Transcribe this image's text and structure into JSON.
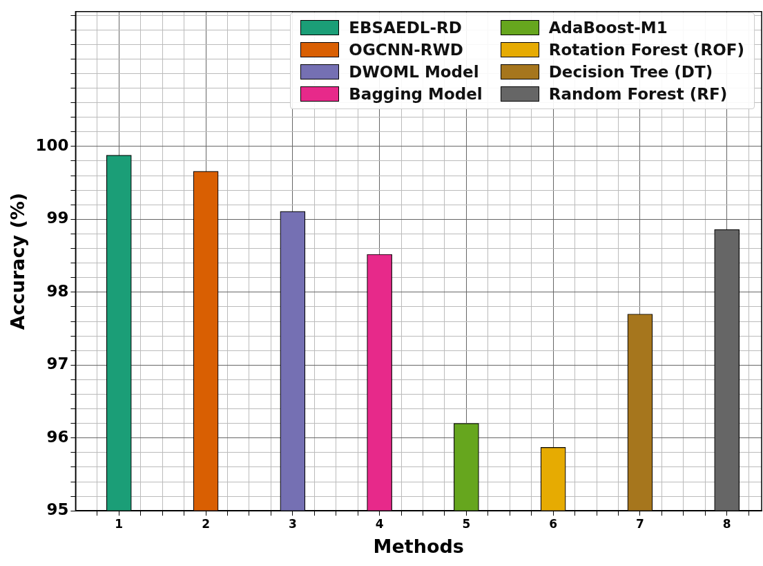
{
  "chart_data": {
    "type": "bar",
    "xlabel": "Methods",
    "ylabel": "Accuracy (%)",
    "x": [
      1,
      2,
      3,
      4,
      5,
      6,
      7,
      8
    ],
    "series": [
      {
        "name": "EBSAEDL-RD",
        "color": "#1b9e77",
        "values": [
          99.88,
          null,
          null,
          null,
          null,
          null,
          null,
          null
        ]
      },
      {
        "name": "OGCNN-RWD",
        "color": "#d95f02",
        "values": [
          null,
          99.66,
          null,
          null,
          null,
          null,
          null,
          null
        ]
      },
      {
        "name": "DWOML Model",
        "color": "#7570b3",
        "values": [
          null,
          null,
          99.11,
          null,
          null,
          null,
          null,
          null
        ]
      },
      {
        "name": "Bagging Model",
        "color": "#e7298a",
        "values": [
          null,
          null,
          null,
          98.52,
          null,
          null,
          null,
          null
        ]
      },
      {
        "name": "AdaBoost-M1",
        "color": "#66a61e",
        "values": [
          null,
          null,
          null,
          null,
          96.2,
          null,
          null,
          null
        ]
      },
      {
        "name": "Rotation Forest (ROF)",
        "color": "#e6ab02",
        "values": [
          null,
          null,
          null,
          null,
          null,
          95.87,
          null,
          null
        ]
      },
      {
        "name": "Decision Tree (DT)",
        "color": "#a6761d",
        "values": [
          null,
          null,
          null,
          null,
          null,
          null,
          97.7,
          null
        ]
      },
      {
        "name": "Random Forest (RF)",
        "color": "#666666",
        "values": [
          null,
          null,
          null,
          null,
          null,
          null,
          null,
          98.86
        ]
      }
    ],
    "xlim": [
      0.5,
      8.4
    ],
    "xticks": [
      {
        "value": 0.75,
        "label": null
      },
      1,
      {
        "value": 1.25,
        "label": null
      },
      {
        "value": 1.5,
        "label": null
      },
      {
        "value": 1.75,
        "label": null
      },
      2,
      {
        "value": 2.25,
        "label": null
      },
      {
        "value": 2.5,
        "label": null
      },
      {
        "value": 2.75,
        "label": null
      },
      3,
      {
        "value": 3.25,
        "label": null
      },
      {
        "value": 3.5,
        "label": null
      },
      {
        "value": 3.75,
        "label": null
      },
      4,
      {
        "value": 4.25,
        "label": null
      },
      {
        "value": 4.5,
        "label": null
      },
      {
        "value": 4.75,
        "label": null
      },
      5,
      {
        "value": 5.25,
        "label": null
      },
      {
        "value": 5.5,
        "label": null
      },
      {
        "value": 5.75,
        "label": null
      },
      6,
      {
        "value": 6.25,
        "label": null
      },
      {
        "value": 6.5,
        "label": null
      },
      {
        "value": 6.75,
        "label": null
      },
      7,
      {
        "value": 7.25,
        "label": null
      },
      {
        "value": 7.5,
        "label": null
      },
      {
        "value": 7.75,
        "label": null
      },
      8,
      {
        "value": 8.25,
        "label": null
      }
    ],
    "ylim": [
      95,
      101.85
    ],
    "yticks": [
      95,
      {
        "value": 95.2,
        "label": null
      },
      {
        "value": 95.4,
        "label": null
      },
      {
        "value": 95.6,
        "label": null
      },
      {
        "value": 95.8,
        "label": null
      },
      96,
      {
        "value": 96.2,
        "label": null
      },
      {
        "value": 96.4,
        "label": null
      },
      {
        "value": 96.6,
        "label": null
      },
      {
        "value": 96.8,
        "label": null
      },
      97,
      {
        "value": 97.2,
        "label": null
      },
      {
        "value": 97.4,
        "label": null
      },
      {
        "value": 97.6,
        "label": null
      },
      {
        "value": 97.8,
        "label": null
      },
      98,
      {
        "value": 98.2,
        "label": null
      },
      {
        "value": 98.4,
        "label": null
      },
      {
        "value": 98.6,
        "label": null
      },
      {
        "value": 98.8,
        "label": null
      },
      99,
      {
        "value": 99.2,
        "label": null
      },
      {
        "value": 99.4,
        "label": null
      },
      {
        "value": 99.6,
        "label": null
      },
      {
        "value": 99.8,
        "label": null
      },
      100,
      {
        "value": 100.2,
        "label": null
      },
      {
        "value": 100.4,
        "label": null
      },
      {
        "value": 100.6,
        "label": null
      },
      {
        "value": 100.8,
        "label": null
      },
      {
        "value": 101,
        "label": null
      },
      {
        "value": 101.2,
        "label": null
      },
      {
        "value": 101.4,
        "label": null
      },
      {
        "value": 101.6,
        "label": null
      },
      {
        "value": 101.8,
        "label": null
      }
    ],
    "grid": true,
    "legend": "top right"
  }
}
